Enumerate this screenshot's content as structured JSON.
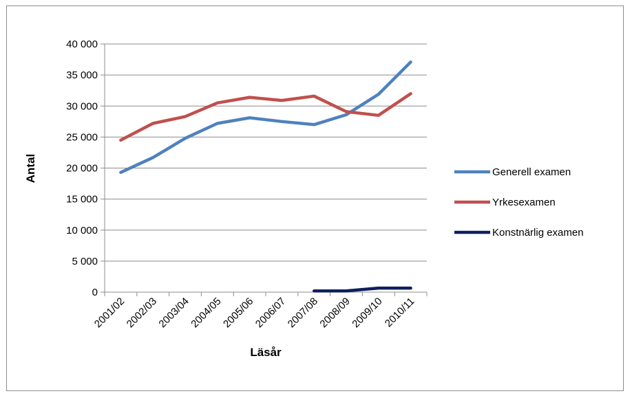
{
  "chart_data": {
    "type": "line",
    "title": "",
    "xlabel": "Läsår",
    "ylabel": "Antal",
    "ylim": [
      0,
      40000
    ],
    "ytick_step": 5000,
    "ytick_labels": [
      "0",
      "5 000",
      "10 000",
      "15 000",
      "20 000",
      "25 000",
      "30 000",
      "35 000",
      "40 000"
    ],
    "grid": true,
    "legend_position": "right",
    "categories": [
      "2001/02",
      "2002/03",
      "2003/04",
      "2004/05",
      "2005/06",
      "2006/07",
      "2007/08",
      "2008/09",
      "2009/10",
      "2010/11"
    ],
    "series": [
      {
        "name": "Generell examen",
        "color": "#4f81bd",
        "values": [
          19300,
          21700,
          24800,
          27200,
          28100,
          27500,
          27000,
          28600,
          31900,
          37100
        ]
      },
      {
        "name": "Yrkesexamen",
        "color": "#c0504d",
        "values": [
          24500,
          27200,
          28300,
          30500,
          31400,
          30900,
          31600,
          29100,
          28500,
          32000
        ]
      },
      {
        "name": "Konstnärlig examen",
        "color": "#0f1f5c",
        "values": [
          null,
          null,
          null,
          null,
          null,
          null,
          200,
          200,
          650,
          650
        ]
      }
    ]
  }
}
